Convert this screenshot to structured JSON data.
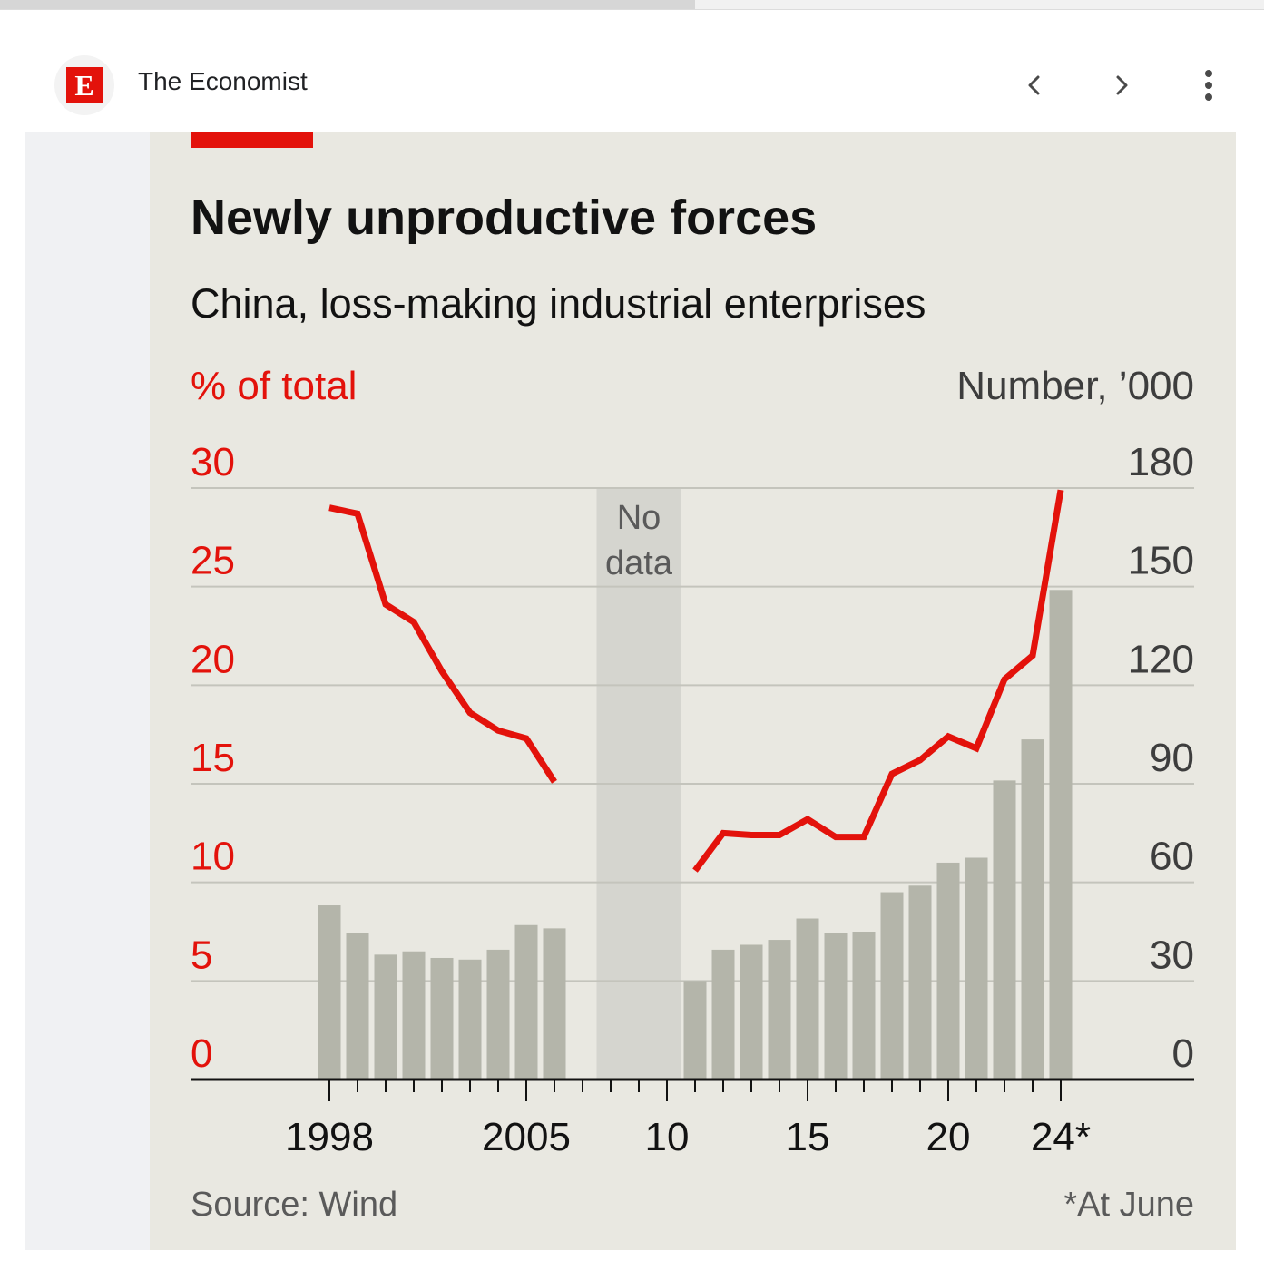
{
  "browser": {
    "load_progress": 0.55
  },
  "app_bar": {
    "logo_letter": "E",
    "site_name": "The Economist",
    "icons": [
      "chevron-left-icon",
      "chevron-right-icon",
      "more-vert-icon"
    ]
  },
  "colors": {
    "accent_red": "#e3120b",
    "line_red": "#e3120b",
    "bar_grey": "#b4b5aa",
    "card_bg": "#e9e8e1",
    "shade_grey": "#d5d5cf"
  },
  "chart_data": {
    "type": "bar",
    "title": "Newly unproductive forces",
    "subtitle": "China, loss-making industrial enterprises",
    "y_left_label": "% of total",
    "y_right_label": "Number, ’000",
    "y_left_ticks": [
      "30",
      "25",
      "20",
      "15",
      "10",
      "5",
      "0"
    ],
    "y_right_ticks": [
      "180",
      "150",
      "120",
      "90",
      "60",
      "30",
      "0"
    ],
    "ylim_left": [
      0,
      30
    ],
    "ylim_right": [
      0,
      180
    ],
    "x_tick_labels": [
      {
        "year": 1998,
        "label": "1998"
      },
      {
        "year": 2005,
        "label": "2005"
      },
      {
        "year": 2010,
        "label": "10"
      },
      {
        "year": 2015,
        "label": "15"
      },
      {
        "year": 2020,
        "label": "20"
      },
      {
        "year": 2024,
        "label": "24*"
      }
    ],
    "no_data_label": [
      "No",
      "data"
    ],
    "no_data_range": [
      2007.5,
      2010.5
    ],
    "grid": true,
    "series": [
      {
        "name": "Number, ’000",
        "type": "bar",
        "axis": "right",
        "x": [
          1998,
          1999,
          2000,
          2001,
          2002,
          2003,
          2004,
          2005,
          2006,
          2011,
          2012,
          2013,
          2014,
          2015,
          2016,
          2017,
          2018,
          2019,
          2020,
          2021,
          2022,
          2023,
          2024
        ],
        "values": [
          53,
          44.5,
          38,
          39,
          37,
          36.5,
          39.5,
          47,
          46,
          30,
          39.5,
          41,
          42.5,
          49,
          44.5,
          45,
          57,
          59,
          66,
          67.5,
          91,
          103.5,
          149
        ]
      },
      {
        "name": "% of total",
        "type": "line",
        "axis": "left",
        "segments": [
          {
            "x": [
              1998,
              1999,
              2000,
              2001,
              2002,
              2003,
              2004,
              2005,
              2006
            ],
            "values": [
              29,
              28.7,
              24.1,
              23.2,
              20.7,
              18.6,
              17.7,
              17.3,
              15.1
            ]
          },
          {
            "x": [
              2011,
              2012,
              2013,
              2014,
              2015,
              2016,
              2017,
              2018,
              2019,
              2020,
              2021,
              2022,
              2023,
              2024
            ],
            "values": [
              10.6,
              12.5,
              12.4,
              12.4,
              13.2,
              12.3,
              12.3,
              15.5,
              16.2,
              17.4,
              16.8,
              20.3,
              21.5,
              29.9
            ]
          }
        ]
      }
    ],
    "source": "Source: Wind",
    "footnote": "*At June"
  }
}
